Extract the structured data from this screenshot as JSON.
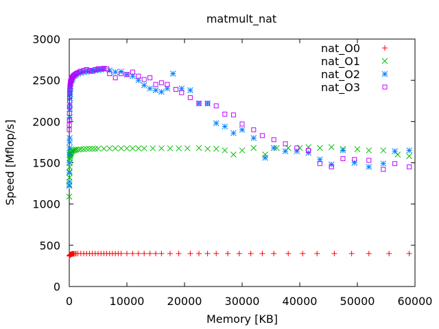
{
  "chart_data": {
    "type": "scatter",
    "title": "matmult_nat",
    "xlabel": "Memory [KB]",
    "ylabel": "Speed [Mflop/s]",
    "xlim": [
      0,
      60000
    ],
    "ylim": [
      0,
      3000
    ],
    "xticks": [
      "0",
      "10000",
      "20000",
      "30000",
      "40000",
      "50000",
      "60000"
    ],
    "yticks": [
      "0",
      "500",
      "1000",
      "1500",
      "2000",
      "2500",
      "3000"
    ],
    "grid": false,
    "legend_position": "top-right",
    "colors": {
      "nat_O0": "#ff0000",
      "nat_O1": "#00c000",
      "nat_O2": "#0080ff",
      "nat_O3": "#c000ff"
    },
    "series": [
      {
        "name": "nat_O0",
        "marker": "plus",
        "points": [
          [
            0,
            370
          ],
          [
            20,
            372
          ],
          [
            50,
            375
          ],
          [
            80,
            378
          ],
          [
            120,
            380
          ],
          [
            160,
            383
          ],
          [
            200,
            386
          ],
          [
            250,
            388
          ],
          [
            300,
            390
          ],
          [
            350,
            392
          ],
          [
            420,
            393
          ],
          [
            500,
            395
          ],
          [
            600,
            396
          ],
          [
            700,
            397
          ],
          [
            800,
            398
          ],
          [
            1000,
            399
          ],
          [
            1200,
            399
          ],
          [
            1500,
            400
          ],
          [
            2000,
            400
          ],
          [
            2500,
            400
          ],
          [
            3000,
            400
          ],
          [
            3500,
            400
          ],
          [
            4000,
            400
          ],
          [
            4500,
            400
          ],
          [
            5000,
            400
          ],
          [
            5500,
            400
          ],
          [
            6000,
            400
          ],
          [
            6500,
            400
          ],
          [
            7000,
            400
          ],
          [
            7500,
            400
          ],
          [
            8000,
            400
          ],
          [
            8500,
            400
          ],
          [
            9000,
            400
          ],
          [
            10000,
            400
          ],
          [
            11000,
            400
          ],
          [
            12000,
            400
          ],
          [
            13000,
            400
          ],
          [
            14000,
            400
          ],
          [
            15000,
            400
          ],
          [
            16000,
            400
          ],
          [
            17500,
            400
          ],
          [
            19000,
            400
          ],
          [
            21000,
            400
          ],
          [
            22500,
            400
          ],
          [
            24000,
            400
          ],
          [
            25500,
            400
          ],
          [
            27500,
            400
          ],
          [
            29500,
            400
          ],
          [
            31500,
            400
          ],
          [
            33500,
            400
          ],
          [
            35500,
            400
          ],
          [
            38000,
            400
          ],
          [
            40500,
            400
          ],
          [
            43000,
            400
          ],
          [
            46000,
            400
          ],
          [
            49000,
            400
          ],
          [
            52000,
            400
          ],
          [
            55500,
            400
          ],
          [
            59000,
            400
          ]
        ]
      },
      {
        "name": "nat_O1",
        "marker": "cross",
        "points": [
          [
            0,
            1090
          ],
          [
            15,
            1230
          ],
          [
            30,
            1320
          ],
          [
            45,
            1390
          ],
          [
            60,
            1450
          ],
          [
            80,
            1500
          ],
          [
            100,
            1540
          ],
          [
            120,
            1560
          ],
          [
            150,
            1580
          ],
          [
            180,
            1600
          ],
          [
            220,
            1610
          ],
          [
            260,
            1620
          ],
          [
            300,
            1630
          ],
          [
            400,
            1640
          ],
          [
            500,
            1645
          ],
          [
            600,
            1650
          ],
          [
            800,
            1650
          ],
          [
            1000,
            1655
          ],
          [
            1200,
            1660
          ],
          [
            1600,
            1660
          ],
          [
            2000,
            1665
          ],
          [
            2500,
            1665
          ],
          [
            3000,
            1670
          ],
          [
            3500,
            1670
          ],
          [
            4000,
            1670
          ],
          [
            4500,
            1670
          ],
          [
            5000,
            1672
          ],
          [
            6000,
            1672
          ],
          [
            7000,
            1675
          ],
          [
            8000,
            1675
          ],
          [
            9000,
            1675
          ],
          [
            10000,
            1675
          ],
          [
            11000,
            1675
          ],
          [
            12000,
            1675
          ],
          [
            13000,
            1675
          ],
          [
            14500,
            1675
          ],
          [
            16000,
            1675
          ],
          [
            17500,
            1675
          ],
          [
            19000,
            1675
          ],
          [
            20500,
            1675
          ],
          [
            22500,
            1680
          ],
          [
            24000,
            1670
          ],
          [
            25500,
            1670
          ],
          [
            27000,
            1650
          ],
          [
            28500,
            1600
          ],
          [
            30000,
            1650
          ],
          [
            32000,
            1680
          ],
          [
            34000,
            1600
          ],
          [
            36000,
            1680
          ],
          [
            38000,
            1680
          ],
          [
            40000,
            1680
          ],
          [
            41500,
            1690
          ],
          [
            43500,
            1680
          ],
          [
            45500,
            1690
          ],
          [
            47500,
            1670
          ],
          [
            50000,
            1665
          ],
          [
            52000,
            1650
          ],
          [
            54500,
            1650
          ],
          [
            57000,
            1600
          ],
          [
            59000,
            1580
          ]
        ]
      },
      {
        "name": "nat_O2",
        "marker": "star",
        "points": [
          [
            0,
            1220
          ],
          [
            10,
            1270
          ],
          [
            20,
            1380
          ],
          [
            30,
            1500
          ],
          [
            40,
            1600
          ],
          [
            50,
            1680
          ],
          [
            60,
            1750
          ],
          [
            70,
            1800
          ],
          [
            80,
            2050
          ],
          [
            90,
            2150
          ],
          [
            100,
            2200
          ],
          [
            120,
            2280
          ],
          [
            140,
            2330
          ],
          [
            160,
            2360
          ],
          [
            180,
            2400
          ],
          [
            200,
            2430
          ],
          [
            250,
            2460
          ],
          [
            300,
            2480
          ],
          [
            400,
            2500
          ],
          [
            500,
            2510
          ],
          [
            600,
            2530
          ],
          [
            800,
            2550
          ],
          [
            1000,
            2560
          ],
          [
            1200,
            2570
          ],
          [
            1500,
            2580
          ],
          [
            2000,
            2590
          ],
          [
            2500,
            2600
          ],
          [
            3000,
            2605
          ],
          [
            3500,
            2610
          ],
          [
            4000,
            2615
          ],
          [
            4500,
            2620
          ],
          [
            5000,
            2625
          ],
          [
            5500,
            2630
          ],
          [
            6000,
            2635
          ],
          [
            7000,
            2620
          ],
          [
            8000,
            2600
          ],
          [
            9000,
            2605
          ],
          [
            10000,
            2570
          ],
          [
            11000,
            2550
          ],
          [
            12000,
            2500
          ],
          [
            13000,
            2440
          ],
          [
            14000,
            2400
          ],
          [
            15000,
            2380
          ],
          [
            16000,
            2360
          ],
          [
            17000,
            2400
          ],
          [
            18000,
            2580
          ],
          [
            19500,
            2400
          ],
          [
            21000,
            2380
          ],
          [
            22500,
            2220
          ],
          [
            24000,
            2220
          ],
          [
            25500,
            1980
          ],
          [
            27000,
            1940
          ],
          [
            28500,
            1860
          ],
          [
            30000,
            1900
          ],
          [
            32000,
            1800
          ],
          [
            34000,
            1560
          ],
          [
            35500,
            1680
          ],
          [
            37500,
            1640
          ],
          [
            39500,
            1640
          ],
          [
            41500,
            1620
          ],
          [
            43500,
            1540
          ],
          [
            45500,
            1480
          ],
          [
            47500,
            1650
          ],
          [
            49500,
            1500
          ],
          [
            52000,
            1450
          ],
          [
            54500,
            1490
          ],
          [
            56500,
            1640
          ],
          [
            59000,
            1650
          ]
        ]
      },
      {
        "name": "nat_O3",
        "marker": "square",
        "points": [
          [
            0,
            1900
          ],
          [
            10,
            1960
          ],
          [
            20,
            2020
          ],
          [
            30,
            2100
          ],
          [
            40,
            2180
          ],
          [
            50,
            2250
          ],
          [
            60,
            2300
          ],
          [
            70,
            2340
          ],
          [
            80,
            2370
          ],
          [
            100,
            2400
          ],
          [
            120,
            2420
          ],
          [
            150,
            2440
          ],
          [
            180,
            2460
          ],
          [
            220,
            2480
          ],
          [
            260,
            2490
          ],
          [
            300,
            2500
          ],
          [
            350,
            2510
          ],
          [
            400,
            2520
          ],
          [
            500,
            2530
          ],
          [
            600,
            2540
          ],
          [
            700,
            2550
          ],
          [
            800,
            2560
          ],
          [
            1000,
            2570
          ],
          [
            1200,
            2580
          ],
          [
            1400,
            2590
          ],
          [
            1700,
            2600
          ],
          [
            2000,
            2610
          ],
          [
            2500,
            2620
          ],
          [
            3000,
            2630
          ],
          [
            3500,
            2620
          ],
          [
            4000,
            2610
          ],
          [
            4500,
            2630
          ],
          [
            5000,
            2640
          ],
          [
            5500,
            2640
          ],
          [
            6000,
            2645
          ],
          [
            6500,
            2640
          ],
          [
            7000,
            2580
          ],
          [
            8000,
            2530
          ],
          [
            9000,
            2580
          ],
          [
            10000,
            2570
          ],
          [
            11000,
            2600
          ],
          [
            12000,
            2550
          ],
          [
            13000,
            2510
          ],
          [
            14000,
            2530
          ],
          [
            15000,
            2450
          ],
          [
            16000,
            2470
          ],
          [
            17000,
            2450
          ],
          [
            18500,
            2390
          ],
          [
            19500,
            2350
          ],
          [
            21000,
            2290
          ],
          [
            22500,
            2220
          ],
          [
            24000,
            2220
          ],
          [
            25500,
            2190
          ],
          [
            27000,
            2090
          ],
          [
            28500,
            2080
          ],
          [
            30000,
            1970
          ],
          [
            32000,
            1900
          ],
          [
            33500,
            1830
          ],
          [
            35500,
            1780
          ],
          [
            37500,
            1730
          ],
          [
            39500,
            1680
          ],
          [
            41500,
            1650
          ],
          [
            43500,
            1490
          ],
          [
            45500,
            1450
          ],
          [
            47500,
            1550
          ],
          [
            49500,
            1540
          ],
          [
            52000,
            1530
          ],
          [
            54500,
            1420
          ],
          [
            56500,
            1490
          ],
          [
            59000,
            1450
          ]
        ]
      }
    ]
  }
}
